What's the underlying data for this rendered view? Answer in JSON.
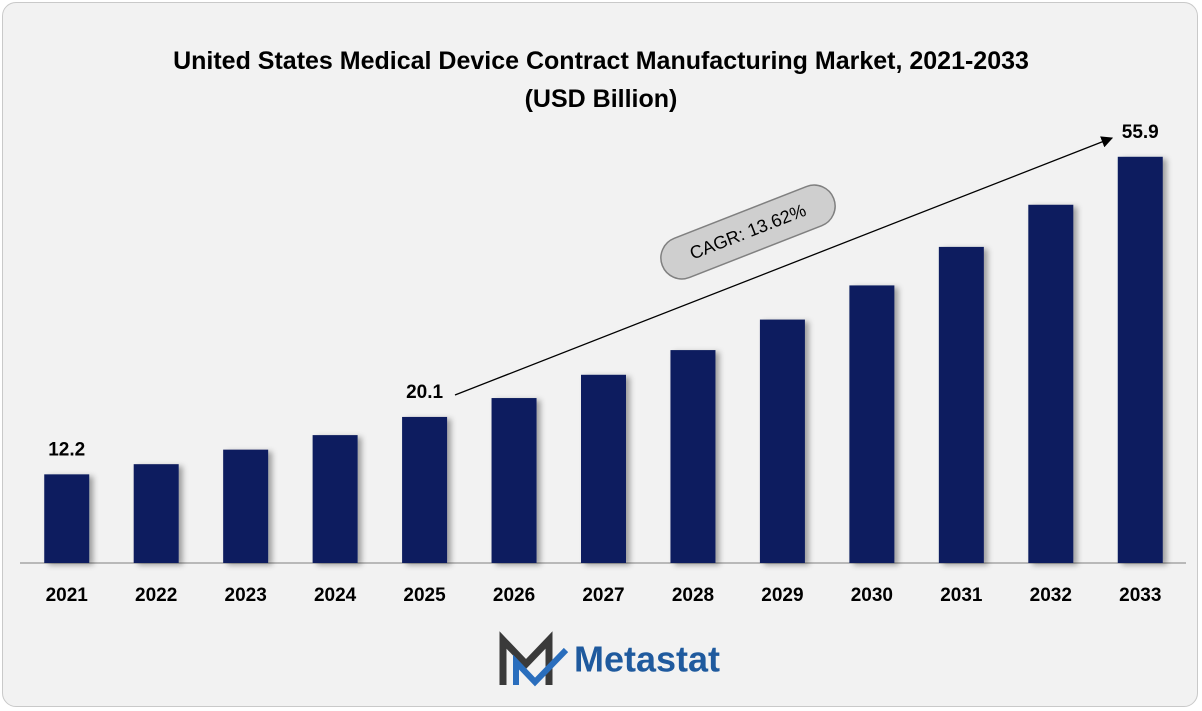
{
  "chart_data": {
    "type": "bar",
    "title": "United States Medical Device Contract Manufacturing Market, 2021-2033 (USD Billion)",
    "categories": [
      "2021",
      "2022",
      "2023",
      "2024",
      "2025",
      "2026",
      "2027",
      "2028",
      "2029",
      "2030",
      "2031",
      "2032",
      "2033"
    ],
    "values": [
      12.2,
      13.6,
      15.6,
      17.6,
      20.1,
      22.7,
      25.9,
      29.3,
      33.5,
      38.2,
      43.5,
      49.3,
      55.9
    ],
    "value_labels": [
      "12.2",
      null,
      null,
      null,
      "20.1",
      null,
      null,
      null,
      null,
      null,
      null,
      null,
      "55.9"
    ],
    "color": "#0f1f5e",
    "ylim": [
      0,
      60
    ],
    "grid": false,
    "annotation": "CAGR: 13.62%",
    "brand": "Metastat"
  }
}
